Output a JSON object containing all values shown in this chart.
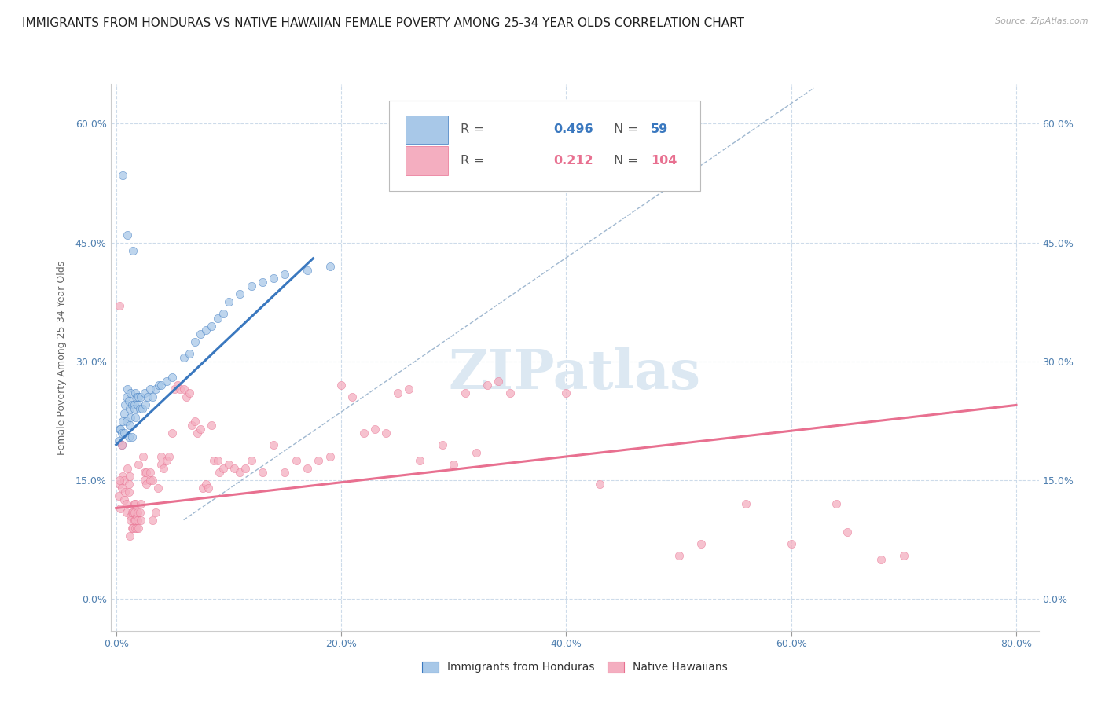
{
  "title": "IMMIGRANTS FROM HONDURAS VS NATIVE HAWAIIAN FEMALE POVERTY AMONG 25-34 YEAR OLDS CORRELATION CHART",
  "source": "Source: ZipAtlas.com",
  "ylabel": "Female Poverty Among 25-34 Year Olds",
  "xlabel_ticks": [
    "0.0%",
    "20.0%",
    "40.0%",
    "60.0%",
    "80.0%"
  ],
  "xlabel_vals": [
    0.0,
    0.2,
    0.4,
    0.6,
    0.8
  ],
  "ylabel_ticks": [
    "0.0%",
    "15.0%",
    "30.0%",
    "45.0%",
    "60.0%"
  ],
  "ylabel_vals": [
    0.0,
    0.15,
    0.3,
    0.45,
    0.6
  ],
  "xlim": [
    -0.005,
    0.82
  ],
  "ylim": [
    -0.04,
    0.65
  ],
  "blue_color": "#a8c8e8",
  "pink_color": "#f4aec0",
  "blue_line_color": "#3a78bf",
  "pink_line_color": "#e87090",
  "dashed_line_color": "#a0b8d0",
  "watermark_color": "#dce8f2",
  "background_color": "#ffffff",
  "grid_color": "#c8d8e8",
  "title_fontsize": 11,
  "axis_label_fontsize": 9,
  "tick_fontsize": 9,
  "scatter_size": 55,
  "scatter_alpha": 0.75,
  "blue_scatter": [
    [
      0.002,
      0.2
    ],
    [
      0.003,
      0.215
    ],
    [
      0.004,
      0.215
    ],
    [
      0.005,
      0.195
    ],
    [
      0.005,
      0.21
    ],
    [
      0.006,
      0.225
    ],
    [
      0.007,
      0.235
    ],
    [
      0.007,
      0.21
    ],
    [
      0.008,
      0.245
    ],
    [
      0.009,
      0.225
    ],
    [
      0.009,
      0.255
    ],
    [
      0.01,
      0.265
    ],
    [
      0.011,
      0.205
    ],
    [
      0.011,
      0.25
    ],
    [
      0.012,
      0.24
    ],
    [
      0.012,
      0.22
    ],
    [
      0.013,
      0.26
    ],
    [
      0.013,
      0.23
    ],
    [
      0.014,
      0.245
    ],
    [
      0.014,
      0.205
    ],
    [
      0.016,
      0.245
    ],
    [
      0.016,
      0.24
    ],
    [
      0.017,
      0.26
    ],
    [
      0.017,
      0.23
    ],
    [
      0.018,
      0.255
    ],
    [
      0.019,
      0.245
    ],
    [
      0.02,
      0.255
    ],
    [
      0.021,
      0.24
    ],
    [
      0.022,
      0.255
    ],
    [
      0.023,
      0.24
    ],
    [
      0.025,
      0.26
    ],
    [
      0.026,
      0.245
    ],
    [
      0.028,
      0.255
    ],
    [
      0.03,
      0.265
    ],
    [
      0.032,
      0.255
    ],
    [
      0.035,
      0.265
    ],
    [
      0.038,
      0.27
    ],
    [
      0.04,
      0.27
    ],
    [
      0.045,
      0.275
    ],
    [
      0.05,
      0.28
    ],
    [
      0.06,
      0.305
    ],
    [
      0.065,
      0.31
    ],
    [
      0.07,
      0.325
    ],
    [
      0.075,
      0.335
    ],
    [
      0.08,
      0.34
    ],
    [
      0.085,
      0.345
    ],
    [
      0.09,
      0.355
    ],
    [
      0.095,
      0.36
    ],
    [
      0.1,
      0.375
    ],
    [
      0.11,
      0.385
    ],
    [
      0.12,
      0.395
    ],
    [
      0.13,
      0.4
    ],
    [
      0.14,
      0.405
    ],
    [
      0.15,
      0.41
    ],
    [
      0.006,
      0.535
    ],
    [
      0.01,
      0.46
    ],
    [
      0.17,
      0.415
    ],
    [
      0.19,
      0.42
    ],
    [
      0.015,
      0.44
    ]
  ],
  "pink_scatter": [
    [
      0.002,
      0.13
    ],
    [
      0.003,
      0.145
    ],
    [
      0.004,
      0.115
    ],
    [
      0.005,
      0.14
    ],
    [
      0.005,
      0.195
    ],
    [
      0.006,
      0.155
    ],
    [
      0.007,
      0.15
    ],
    [
      0.007,
      0.125
    ],
    [
      0.008,
      0.135
    ],
    [
      0.009,
      0.11
    ],
    [
      0.009,
      0.12
    ],
    [
      0.01,
      0.165
    ],
    [
      0.011,
      0.135
    ],
    [
      0.011,
      0.145
    ],
    [
      0.012,
      0.08
    ],
    [
      0.012,
      0.155
    ],
    [
      0.013,
      0.105
    ],
    [
      0.013,
      0.1
    ],
    [
      0.014,
      0.09
    ],
    [
      0.014,
      0.11
    ],
    [
      0.015,
      0.09
    ],
    [
      0.015,
      0.11
    ],
    [
      0.016,
      0.1
    ],
    [
      0.016,
      0.12
    ],
    [
      0.016,
      0.11
    ],
    [
      0.017,
      0.09
    ],
    [
      0.017,
      0.1
    ],
    [
      0.017,
      0.12
    ],
    [
      0.018,
      0.09
    ],
    [
      0.018,
      0.105
    ],
    [
      0.019,
      0.1
    ],
    [
      0.019,
      0.11
    ],
    [
      0.02,
      0.09
    ],
    [
      0.02,
      0.17
    ],
    [
      0.021,
      0.11
    ],
    [
      0.022,
      0.1
    ],
    [
      0.022,
      0.12
    ],
    [
      0.024,
      0.18
    ],
    [
      0.025,
      0.15
    ],
    [
      0.025,
      0.16
    ],
    [
      0.027,
      0.16
    ],
    [
      0.027,
      0.145
    ],
    [
      0.03,
      0.15
    ],
    [
      0.03,
      0.16
    ],
    [
      0.032,
      0.15
    ],
    [
      0.032,
      0.1
    ],
    [
      0.035,
      0.11
    ],
    [
      0.037,
      0.14
    ],
    [
      0.04,
      0.18
    ],
    [
      0.04,
      0.17
    ],
    [
      0.042,
      0.165
    ],
    [
      0.045,
      0.175
    ],
    [
      0.047,
      0.18
    ],
    [
      0.05,
      0.21
    ],
    [
      0.052,
      0.265
    ],
    [
      0.055,
      0.27
    ],
    [
      0.057,
      0.265
    ],
    [
      0.06,
      0.265
    ],
    [
      0.062,
      0.255
    ],
    [
      0.065,
      0.26
    ],
    [
      0.067,
      0.22
    ],
    [
      0.07,
      0.225
    ],
    [
      0.072,
      0.21
    ],
    [
      0.075,
      0.215
    ],
    [
      0.077,
      0.14
    ],
    [
      0.08,
      0.145
    ],
    [
      0.082,
      0.14
    ],
    [
      0.085,
      0.22
    ],
    [
      0.087,
      0.175
    ],
    [
      0.09,
      0.175
    ],
    [
      0.092,
      0.16
    ],
    [
      0.095,
      0.165
    ],
    [
      0.1,
      0.17
    ],
    [
      0.105,
      0.165
    ],
    [
      0.11,
      0.16
    ],
    [
      0.115,
      0.165
    ],
    [
      0.12,
      0.175
    ],
    [
      0.13,
      0.16
    ],
    [
      0.14,
      0.195
    ],
    [
      0.15,
      0.16
    ],
    [
      0.16,
      0.175
    ],
    [
      0.17,
      0.165
    ],
    [
      0.18,
      0.175
    ],
    [
      0.19,
      0.18
    ],
    [
      0.2,
      0.27
    ],
    [
      0.21,
      0.255
    ],
    [
      0.22,
      0.21
    ],
    [
      0.23,
      0.215
    ],
    [
      0.24,
      0.21
    ],
    [
      0.25,
      0.26
    ],
    [
      0.26,
      0.265
    ],
    [
      0.27,
      0.175
    ],
    [
      0.29,
      0.195
    ],
    [
      0.3,
      0.17
    ],
    [
      0.31,
      0.26
    ],
    [
      0.32,
      0.185
    ],
    [
      0.33,
      0.27
    ],
    [
      0.34,
      0.275
    ],
    [
      0.35,
      0.26
    ],
    [
      0.003,
      0.37
    ],
    [
      0.29,
      0.575
    ],
    [
      0.39,
      0.575
    ],
    [
      0.003,
      0.15
    ],
    [
      0.4,
      0.26
    ],
    [
      0.43,
      0.145
    ],
    [
      0.5,
      0.055
    ],
    [
      0.52,
      0.07
    ],
    [
      0.56,
      0.12
    ],
    [
      0.6,
      0.07
    ],
    [
      0.64,
      0.12
    ],
    [
      0.65,
      0.085
    ],
    [
      0.68,
      0.05
    ],
    [
      0.7,
      0.055
    ]
  ],
  "blue_trend_x": [
    0.0,
    0.175
  ],
  "blue_trend_y": [
    0.195,
    0.43
  ],
  "pink_trend_x": [
    0.0,
    0.8
  ],
  "pink_trend_y": [
    0.115,
    0.245
  ],
  "dashed_trend_x": [
    0.06,
    0.62
  ],
  "dashed_trend_y": [
    0.1,
    0.645
  ],
  "legend_r_color": "#3a78bf",
  "legend_n_color": "#e87090"
}
